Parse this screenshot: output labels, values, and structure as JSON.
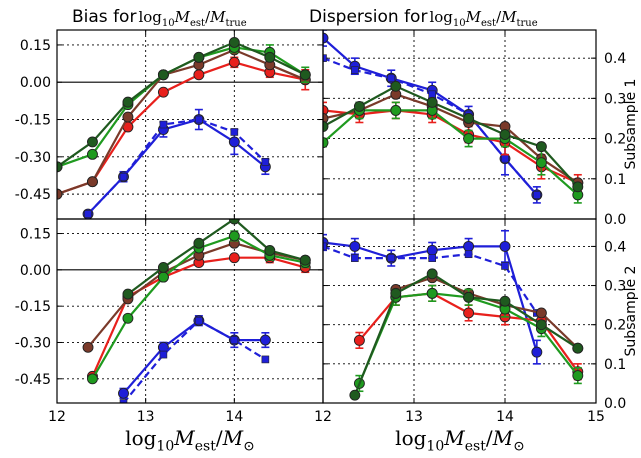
{
  "chart_data": {
    "type": "line",
    "colors": {
      "blue": "#1f1fd8",
      "red": "#e8201c",
      "green": "#1f9a1f",
      "darkgreen": "#1f5a1f",
      "brown": "#7a3a2a"
    },
    "column_titles": {
      "bias": {
        "prefix": "Bias for "
      },
      "dispersion": {
        "prefix": "Dispersion for "
      }
    },
    "row_labels": [
      "Subsample 1",
      "Subsample 2"
    ],
    "xlabel": {
      "base": "log",
      "sub": "10",
      "var": "M",
      "varsub": "est",
      "slash": "/",
      "den": "M",
      "densub": "⊙"
    },
    "title_math": {
      "base": "log",
      "sub": "10",
      "var": "M",
      "varsub": "est",
      "slash": "/",
      "den": "M",
      "densub": "true"
    },
    "bias_axis": {
      "xlim": [
        12,
        15
      ],
      "ylim": [
        -0.55,
        0.21
      ],
      "xticks": [
        "12",
        "13",
        "14"
      ],
      "yticks": [
        "0.15",
        "0.00",
        "-0.15",
        "-0.30",
        "-0.45"
      ]
    },
    "disp_axis": {
      "xlim": [
        12,
        15
      ],
      "ylim": [
        0,
        0.47
      ],
      "xticks": [
        "12",
        "13",
        "14",
        "15"
      ],
      "yticks": [
        "0.0",
        "0.1",
        "0.2",
        "0.3",
        "0.4"
      ]
    },
    "panels": [
      {
        "name": "bias-subsample-1",
        "series": [
          {
            "color": "blue",
            "x": [
              12.35,
              12.75,
              13.2,
              13.6,
              14.0,
              14.35
            ],
            "y": [
              -0.53,
              -0.38,
              -0.19,
              -0.15,
              -0.24,
              -0.34
            ],
            "err": [
              0.01,
              0.02,
              0.03,
              0.04,
              0.05,
              0.03
            ]
          },
          {
            "color": "blue",
            "dashed": true,
            "x": [
              12.35,
              12.75,
              13.2,
              13.6,
              14.0,
              14.35
            ],
            "y": [
              -0.53,
              -0.38,
              -0.17,
              -0.15,
              -0.2,
              -0.32
            ],
            "err": [
              0,
              0,
              0,
              0,
              0,
              0
            ]
          },
          {
            "color": "red",
            "x": [
              12.0,
              12.4,
              12.8,
              13.2,
              13.6,
              14.0,
              14.4,
              14.8
            ],
            "y": [
              -0.45,
              -0.4,
              -0.18,
              -0.04,
              0.03,
              0.08,
              0.04,
              0.01
            ],
            "err": [
              0.01,
              0.01,
              0.01,
              0.01,
              0.01,
              0.02,
              0.02,
              0.04
            ]
          },
          {
            "color": "brown",
            "x": [
              12.0,
              12.4,
              12.8,
              13.2,
              13.6,
              14.0,
              14.4,
              14.8
            ],
            "y": [
              -0.45,
              -0.4,
              -0.14,
              0.03,
              0.07,
              0.13,
              0.07,
              0.01
            ],
            "err": [
              0,
              0,
              0,
              0,
              0,
              0,
              0,
              0
            ]
          },
          {
            "color": "green",
            "x": [
              12.0,
              12.4,
              12.8,
              13.2,
              13.6,
              14.0,
              14.4,
              14.8
            ],
            "y": [
              -0.34,
              -0.29,
              -0.09,
              0.03,
              0.1,
              0.14,
              0.12,
              0.03
            ],
            "err": [
              0.01,
              0.01,
              0.01,
              0.01,
              0.01,
              0.02,
              0.03,
              0.03
            ]
          },
          {
            "color": "darkgreen",
            "x": [
              12.0,
              12.4,
              12.8,
              13.2,
              13.6,
              14.0,
              14.4,
              14.8
            ],
            "y": [
              -0.34,
              -0.24,
              -0.08,
              0.03,
              0.1,
              0.16,
              0.1,
              0.03
            ],
            "err": [
              0,
              0,
              0,
              0,
              0,
              0,
              0,
              0
            ]
          }
        ]
      },
      {
        "name": "dispersion-subsample-1",
        "series": [
          {
            "color": "blue",
            "x": [
              12.0,
              12.35,
              12.75,
              13.2,
              13.6,
              14.0,
              14.35
            ],
            "y": [
              0.45,
              0.38,
              0.35,
              0.32,
              0.26,
              0.15,
              0.06
            ],
            "err": [
              0.02,
              0.02,
              0.02,
              0.02,
              0.02,
              0.04,
              0.02
            ]
          },
          {
            "color": "blue",
            "dashed": true,
            "x": [
              12.0,
              12.35,
              12.75,
              13.2,
              13.6,
              14.0,
              14.35
            ],
            "y": [
              0.4,
              0.37,
              0.35,
              0.31,
              0.26,
              0.15,
              0.06
            ],
            "err": [
              0,
              0,
              0,
              0,
              0,
              0,
              0
            ]
          },
          {
            "color": "red",
            "x": [
              12.0,
              12.4,
              12.8,
              13.2,
              13.6,
              14.0,
              14.4,
              14.8
            ],
            "y": [
              0.27,
              0.26,
              0.27,
              0.26,
              0.21,
              0.19,
              0.13,
              0.09
            ],
            "err": [
              0.02,
              0.02,
              0.02,
              0.02,
              0.02,
              0.03,
              0.03,
              0.02
            ]
          },
          {
            "color": "brown",
            "x": [
              12.0,
              12.4,
              12.8,
              13.2,
              13.6,
              14.0,
              14.4,
              14.8
            ],
            "y": [
              0.25,
              0.27,
              0.31,
              0.28,
              0.24,
              0.23,
              0.15,
              0.09
            ],
            "err": [
              0,
              0,
              0,
              0,
              0,
              0,
              0,
              0
            ]
          },
          {
            "color": "green",
            "x": [
              12.0,
              12.4,
              12.8,
              13.2,
              13.6,
              14.0,
              14.4,
              14.8
            ],
            "y": [
              0.19,
              0.27,
              0.27,
              0.27,
              0.2,
              0.2,
              0.14,
              0.06
            ],
            "err": [
              0.01,
              0.02,
              0.02,
              0.02,
              0.02,
              0.02,
              0.03,
              0.02
            ]
          },
          {
            "color": "darkgreen",
            "x": [
              12.0,
              12.4,
              12.8,
              13.2,
              13.6,
              14.0,
              14.4,
              14.8
            ],
            "y": [
              0.23,
              0.28,
              0.33,
              0.29,
              0.25,
              0.21,
              0.18,
              0.08
            ],
            "err": [
              0,
              0,
              0,
              0,
              0,
              0,
              0,
              0
            ]
          }
        ]
      },
      {
        "name": "bias-subsample-2",
        "series": [
          {
            "color": "blue",
            "x": [
              12.75,
              13.2,
              13.6,
              14.0,
              14.35
            ],
            "y": [
              -0.51,
              -0.32,
              -0.21,
              -0.29,
              -0.29
            ],
            "err": [
              0.02,
              0.02,
              0.02,
              0.03,
              0.03
            ]
          },
          {
            "color": "blue",
            "dashed": true,
            "x": [
              12.75,
              13.2,
              13.6,
              14.0,
              14.35
            ],
            "y": [
              -0.55,
              -0.35,
              -0.21,
              -0.29,
              -0.37
            ],
            "err": [
              0,
              0,
              0,
              0,
              0
            ]
          },
          {
            "color": "red",
            "x": [
              12.4,
              12.8,
              13.2,
              13.6,
              14.0,
              14.4,
              14.8
            ],
            "y": [
              -0.44,
              -0.11,
              -0.03,
              0.03,
              0.05,
              0.05,
              0.01
            ],
            "err": [
              0.01,
              0.01,
              0.01,
              0.01,
              0.01,
              0.02,
              0.02
            ]
          },
          {
            "color": "brown",
            "x": [
              12.35,
              12.8,
              13.2,
              13.6,
              14.0,
              14.4,
              14.8
            ],
            "y": [
              -0.32,
              -0.12,
              -0.01,
              0.06,
              0.11,
              0.07,
              0.04
            ],
            "err": [
              0,
              0,
              0,
              0,
              0,
              0,
              0
            ]
          },
          {
            "color": "green",
            "x": [
              12.4,
              12.8,
              13.2,
              13.6,
              14.0,
              14.4,
              14.8
            ],
            "y": [
              -0.45,
              -0.2,
              -0.03,
              0.09,
              0.14,
              0.06,
              0.03
            ],
            "err": [
              0.01,
              0.01,
              0.01,
              0.01,
              0.02,
              0.02,
              0.02
            ]
          },
          {
            "color": "darkgreen",
            "x": [
              12.8,
              13.2,
              13.6,
              14.0,
              14.4,
              14.8
            ],
            "y": [
              -0.1,
              0.01,
              0.11,
              0.21,
              0.08,
              0.04
            ],
            "err": [
              0,
              0,
              0,
              0,
              0,
              0
            ]
          }
        ]
      },
      {
        "name": "dispersion-subsample-2",
        "series": [
          {
            "color": "blue",
            "x": [
              12.0,
              12.35,
              12.75,
              13.2,
              13.6,
              14.0,
              14.35
            ],
            "y": [
              0.41,
              0.4,
              0.37,
              0.39,
              0.4,
              0.4,
              0.13
            ],
            "err": [
              0.02,
              0.02,
              0.02,
              0.02,
              0.02,
              0.04,
              0.03
            ]
          },
          {
            "color": "blue",
            "dashed": true,
            "x": [
              12.0,
              12.35,
              12.75,
              13.2,
              13.6,
              14.0,
              14.35
            ],
            "y": [
              0.4,
              0.37,
              0.37,
              0.37,
              0.38,
              0.35,
              0.23
            ],
            "err": [
              0,
              0,
              0,
              0,
              0,
              0,
              0
            ]
          },
          {
            "color": "red",
            "x": [
              12.4,
              12.8,
              13.2,
              13.6,
              14.0,
              14.4,
              14.8
            ],
            "y": [
              0.16,
              0.27,
              0.28,
              0.23,
              0.22,
              0.21,
              0.08
            ],
            "err": [
              0.02,
              0.02,
              0.02,
              0.02,
              0.02,
              0.02,
              0.02
            ]
          },
          {
            "color": "brown",
            "x": [
              12.8,
              13.2,
              13.6,
              14.0,
              14.4,
              14.8
            ],
            "y": [
              0.29,
              0.32,
              0.28,
              0.25,
              0.23,
              0.14
            ],
            "err": [
              0,
              0,
              0,
              0,
              0,
              0
            ]
          },
          {
            "color": "green",
            "x": [
              12.4,
              12.8,
              13.2,
              13.6,
              14.0,
              14.4,
              14.8
            ],
            "y": [
              0.05,
              0.27,
              0.28,
              0.27,
              0.24,
              0.19,
              0.07
            ],
            "err": [
              0.02,
              0.02,
              0.02,
              0.02,
              0.02,
              0.02,
              0.02
            ]
          },
          {
            "color": "darkgreen",
            "x": [
              12.35,
              12.8,
              13.2,
              13.6,
              14.0,
              14.4,
              14.8
            ],
            "y": [
              0.02,
              0.28,
              0.33,
              0.27,
              0.26,
              0.2,
              0.14
            ],
            "err": [
              0,
              0,
              0,
              0,
              0,
              0,
              0
            ]
          }
        ]
      }
    ]
  }
}
